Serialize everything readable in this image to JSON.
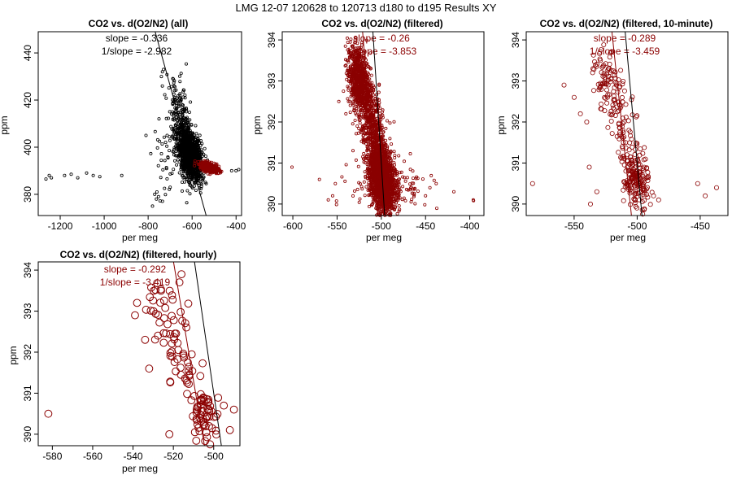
{
  "figure": {
    "title": "LMG   12-07    120628 to 120713    d180 to d195   Results XY"
  },
  "colors": {
    "dark_red": "#8b0000",
    "black": "#000000"
  },
  "chart_data": [
    {
      "type": "scatter",
      "title": "CO2 vs. d(O2/N2) (all)",
      "xlabel": "per meg",
      "ylabel": "ppm",
      "xlim": [
        -1300,
        -375
      ],
      "ylim": [
        371,
        449
      ],
      "xticks": [
        -1200,
        -1000,
        -800,
        -600,
        -400
      ],
      "yticks": [
        380,
        400,
        420,
        440
      ],
      "annotations": [
        "slope = -0.336",
        "1/slope = -2.982"
      ],
      "annotation_color": "#000000",
      "marker_size": 1.6,
      "lines": [
        {
          "name": "fit (all)",
          "color": "#000000",
          "slope": -0.336,
          "point": [
            -600,
            392.5
          ]
        }
      ],
      "series": [
        {
          "name": "all data",
          "color": "#000000",
          "clusters": [
            {
              "n": 1300,
              "cx": -612,
              "cy": 397,
              "sx": 28,
              "sy": 5.5,
              "corr": -0.45
            },
            {
              "n": 140,
              "cx": -658,
              "cy": 413,
              "sx": 26,
              "sy": 8,
              "corr": -0.3
            },
            {
              "n": 40,
              "cx": -720,
              "cy": 393,
              "sx": 40,
              "sy": 8,
              "corr": 0
            }
          ],
          "points": [
            [
              -1265,
              386.5
            ],
            [
              -1250,
              388
            ],
            [
              -1240,
              387
            ],
            [
              -1180,
              388
            ],
            [
              -1150,
              388.5
            ],
            [
              -1120,
              387
            ],
            [
              -1080,
              389
            ],
            [
              -1050,
              388
            ],
            [
              -1020,
              387.5
            ],
            [
              -920,
              388
            ],
            [
              -780,
              375
            ],
            [
              -770,
              380
            ],
            [
              -760,
              381
            ],
            [
              -700,
              383
            ],
            [
              -740,
              430
            ],
            [
              -735,
              432
            ],
            [
              -730,
              433
            ],
            [
              -690,
              415
            ],
            [
              -683,
              426
            ],
            [
              -680,
              424
            ],
            [
              -650,
              420
            ],
            [
              -400,
              390
            ],
            [
              -388,
              390.5
            ],
            [
              -420,
              390
            ]
          ]
        },
        {
          "name": "filtered",
          "color": "#8b0000",
          "clusters": [
            {
              "n": 420,
              "cx": -520,
              "cy": 391.3,
              "sx": 22,
              "sy": 1.1,
              "corr": -0.5
            }
          ],
          "points": []
        }
      ]
    },
    {
      "type": "scatter",
      "title": "CO2 vs. d(O2/N2) (filtered)",
      "xlabel": "per meg",
      "ylabel": "ppm",
      "xlim": [
        -612,
        -384
      ],
      "ylim": [
        389.72,
        394.2
      ],
      "xticks": [
        -600,
        -550,
        -500,
        -450,
        -400
      ],
      "yticks": [
        390,
        391,
        392,
        393,
        394
      ],
      "annotations": [
        "slope = -0.26",
        "1/slope = -3.853"
      ],
      "annotation_color": "#8b0000",
      "marker_size": 1.6,
      "lines": [
        {
          "name": "fit (all)",
          "color": "#000000",
          "slope": -0.336,
          "point": [
            -500,
            391
          ]
        },
        {
          "name": "fit (filtered)",
          "color": "#8b0000",
          "slope": -0.26,
          "point": [
            -510,
            391.3
          ]
        }
      ],
      "series": [
        {
          "name": "filtered",
          "color": "#8b0000",
          "clusters": [
            {
              "n": 1700,
              "cx": -499,
              "cy": 390.6,
              "sx": 7,
              "sy": 0.4,
              "corr": -0.3
            },
            {
              "n": 700,
              "cx": -526,
              "cy": 393.05,
              "sx": 6,
              "sy": 0.4,
              "corr": -0.2
            },
            {
              "n": 650,
              "cx": -509,
              "cy": 391.8,
              "sx": 8,
              "sy": 0.65,
              "corr": -0.6
            },
            {
              "n": 160,
              "cx": -490,
              "cy": 390.4,
              "sx": 22,
              "sy": 0.35,
              "corr": 0
            }
          ],
          "points": [
            [
              -601,
              390.9
            ],
            [
              -570,
              390.6
            ],
            [
              -560,
              390.1
            ],
            [
              -555,
              390.2
            ],
            [
              -552,
              390.5
            ],
            [
              -450,
              390.2
            ],
            [
              -445,
              390.4
            ],
            [
              -438,
              390.5
            ],
            [
              -418,
              390.3
            ],
            [
              -396,
              390.1
            ],
            [
              -540,
              392.2
            ],
            [
              -548,
              392.5
            ],
            [
              -532,
              391.3
            ]
          ]
        }
      ]
    },
    {
      "type": "scatter",
      "title": "CO2 vs. d(O2/N2) (filtered, 10-minute)",
      "xlabel": "per meg",
      "ylabel": "ppm",
      "xlim": [
        -588,
        -428
      ],
      "ylim": [
        389.72,
        394.2
      ],
      "xticks": [
        -550,
        -500,
        -450
      ],
      "yticks": [
        390,
        391,
        392,
        393,
        394
      ],
      "annotations": [
        "slope = -0.289",
        "1/slope = -3.459"
      ],
      "annotation_color": "#8b0000",
      "marker_size": 2.6,
      "lines": [
        {
          "name": "fit (all)",
          "color": "#000000",
          "slope": -0.336,
          "point": [
            -500,
            391
          ]
        },
        {
          "name": "fit (filtered)",
          "color": "#8b0000",
          "slope": -0.289,
          "point": [
            -510,
            391.3
          ]
        }
      ],
      "series": [
        {
          "name": "10-minute",
          "color": "#8b0000",
          "clusters": [
            {
              "n": 170,
              "cx": -501,
              "cy": 390.55,
              "sx": 5,
              "sy": 0.35,
              "corr": -0.2
            },
            {
              "n": 75,
              "cx": -524,
              "cy": 393.0,
              "sx": 5,
              "sy": 0.35,
              "corr": -0.2
            },
            {
              "n": 90,
              "cx": -511,
              "cy": 391.9,
              "sx": 7,
              "sy": 0.6,
              "corr": -0.5
            }
          ],
          "points": [
            [
              -583,
              390.5
            ],
            [
              -558,
              392.9
            ],
            [
              -550,
              392.6
            ],
            [
              -545,
              392.2
            ],
            [
              -540,
              392.0
            ],
            [
              -538,
              390.9
            ],
            [
              -537,
              390.0
            ],
            [
              -532,
              390.3
            ],
            [
              -535,
              393.3
            ],
            [
              -487,
              390.2
            ],
            [
              -483,
              390.1
            ],
            [
              -452,
              390.5
            ],
            [
              -446,
              390.2
            ],
            [
              -437,
              390.4
            ]
          ]
        }
      ]
    },
    {
      "type": "scatter",
      "title": "CO2 vs. d(O2/N2) (filtered, hourly)",
      "xlabel": "per meg",
      "ylabel": "ppm",
      "xlim": [
        -587,
        -487
      ],
      "ylim": [
        389.72,
        394.2
      ],
      "xticks": [
        -580,
        -560,
        -540,
        -520,
        -500
      ],
      "yticks": [
        390,
        391,
        392,
        393,
        394
      ],
      "annotations": [
        "slope = -0.292",
        "1/slope = -3.419"
      ],
      "annotation_color": "#8b0000",
      "marker_size": 4.4,
      "lines": [
        {
          "name": "fit (all)",
          "color": "#000000",
          "slope": -0.336,
          "point": [
            -500,
            391
          ]
        },
        {
          "name": "fit (filtered)",
          "color": "#8b0000",
          "slope": -0.292,
          "point": [
            -510,
            391.3
          ]
        }
      ],
      "series": [
        {
          "name": "hourly",
          "color": "#8b0000",
          "clusters": [
            {
              "n": 55,
              "cx": -504,
              "cy": 390.45,
              "sx": 3.5,
              "sy": 0.3,
              "corr": -0.2
            },
            {
              "n": 35,
              "cx": -525,
              "cy": 392.95,
              "sx": 5,
              "sy": 0.4,
              "corr": -0.3
            },
            {
              "n": 40,
              "cx": -514,
              "cy": 391.7,
              "sx": 5,
              "sy": 0.55,
              "corr": -0.4
            }
          ],
          "points": [
            [
              -582,
              390.5
            ],
            [
              -538,
              393.2
            ],
            [
              -539,
              392.9
            ],
            [
              -534,
              392.3
            ],
            [
              -532,
              391.6
            ],
            [
              -522,
              390.0
            ],
            [
              -517,
              393.7
            ],
            [
              -516,
              393.9
            ],
            [
              -490,
              390.6
            ],
            [
              -492,
              390.1
            ],
            [
              -495,
              390.7
            ]
          ]
        }
      ]
    }
  ]
}
